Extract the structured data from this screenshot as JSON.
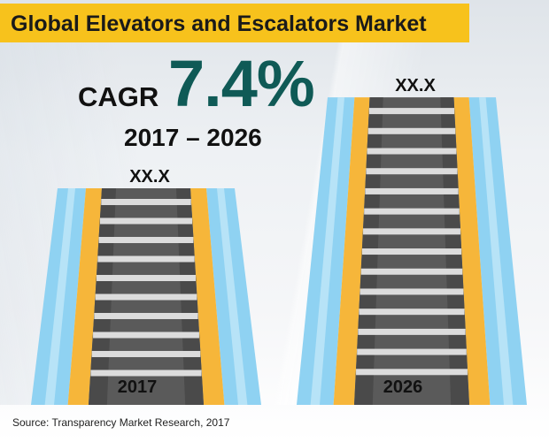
{
  "title": "Global Elevators and Escalators Market",
  "cagr": {
    "label": "CAGR",
    "value": "7.4%",
    "period": "2017 – 2026"
  },
  "source": "Source: Transparency Market Research, 2017",
  "colors": {
    "title_bar": "#f7c21c",
    "cagr_value": "#0f5a56",
    "rail_outer": "#8fd2f2",
    "rail_inner": "#f6b63a",
    "tread": "#5a5a5a",
    "step_edge": "#dcdcdc"
  },
  "chart_data": {
    "type": "bar",
    "categories": [
      "2017",
      "2026"
    ],
    "data_labels": [
      "XX.X",
      "XX.X"
    ],
    "relative_heights": [
      1.0,
      1.42
    ],
    "title": "Global Elevators and Escalators Market",
    "xlabel": "",
    "ylabel": ""
  }
}
